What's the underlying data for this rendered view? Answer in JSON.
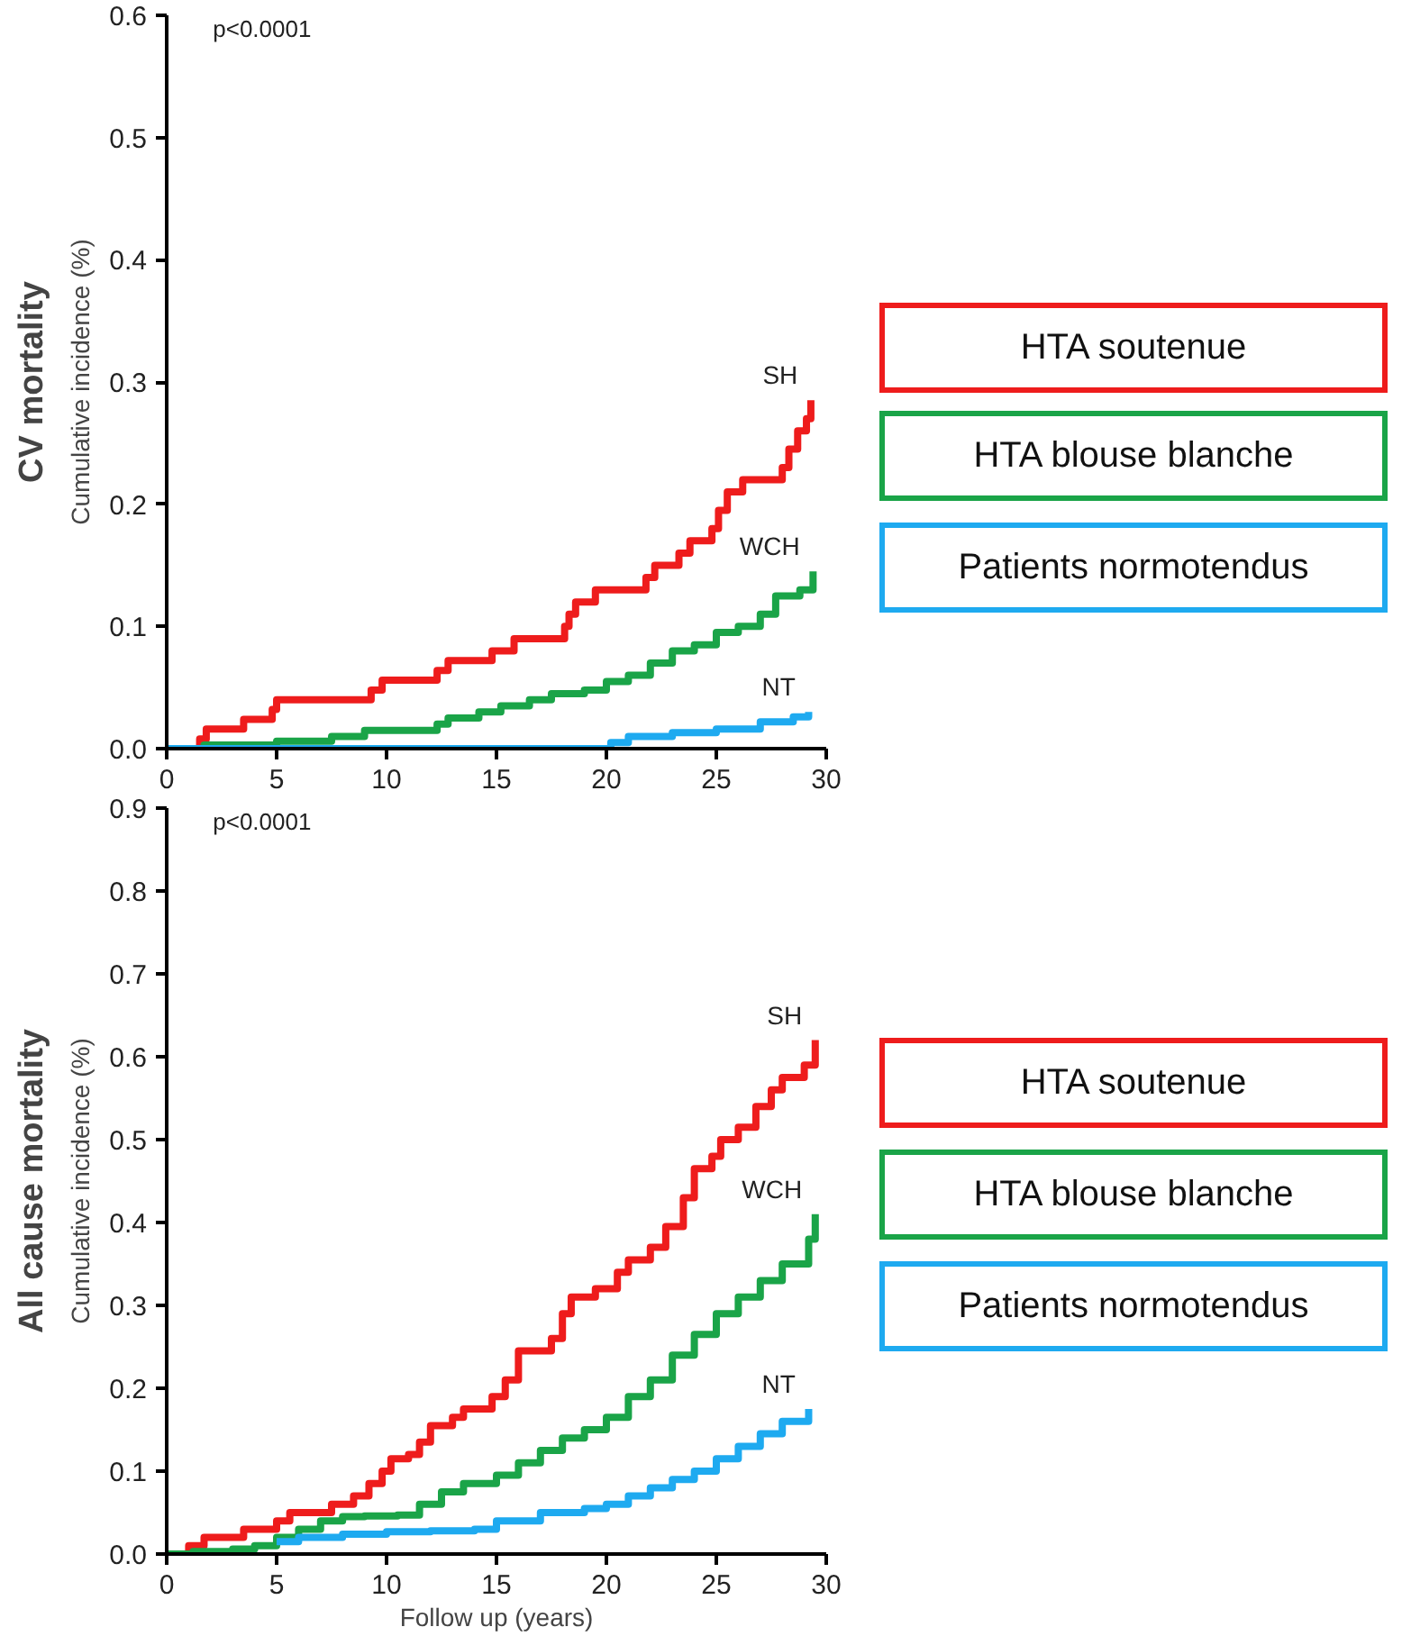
{
  "chart_data": [
    {
      "type": "step",
      "title": "CV mortality",
      "ylabel": "Cumulative incidence (%)",
      "xlim": [
        0,
        30
      ],
      "xticks": [
        0,
        5,
        10,
        15,
        20,
        25,
        30
      ],
      "ylim": [
        0,
        0.6
      ],
      "yticks": [
        {
          "value": 0,
          "label": "0.0"
        },
        0.1,
        0.2,
        0.3,
        0.4,
        0.5,
        0.6
      ],
      "grid": false,
      "annotations": [
        "p<0.0001",
        "HTA soutenue",
        "HTA blouse blanche",
        "Patients normotendus"
      ],
      "series": [
        {
          "name": "SH",
          "color": "#ee1c1c",
          "x": [
            0,
            1.5,
            1.8,
            3.5,
            4.8,
            5.0,
            9.3,
            9.8,
            12.3,
            12.8,
            14.8,
            15.8,
            18.1,
            18.3,
            18.6,
            19.5,
            21.8,
            22.2,
            23.3,
            23.8,
            24.8,
            25.1,
            25.5,
            26.2,
            28.0,
            28.3,
            28.7,
            29.1,
            29.3
          ],
          "values": [
            0,
            0.008,
            0.016,
            0.024,
            0.032,
            0.04,
            0.048,
            0.056,
            0.064,
            0.072,
            0.08,
            0.09,
            0.1,
            0.11,
            0.12,
            0.13,
            0.14,
            0.15,
            0.16,
            0.17,
            0.18,
            0.195,
            0.21,
            0.22,
            0.23,
            0.245,
            0.26,
            0.27,
            0.285
          ]
        },
        {
          "name": "WCH",
          "color": "#1aa448",
          "x": [
            0,
            1.7,
            5,
            7.5,
            9,
            12.3,
            12.8,
            14.2,
            15.2,
            16.5,
            17.5,
            19,
            20,
            21,
            22,
            23,
            24,
            25,
            26,
            27,
            27.7,
            28.8,
            29.4
          ],
          "values": [
            0,
            0.003,
            0.006,
            0.01,
            0.015,
            0.02,
            0.025,
            0.03,
            0.035,
            0.04,
            0.045,
            0.048,
            0.055,
            0.06,
            0.07,
            0.08,
            0.085,
            0.095,
            0.1,
            0.11,
            0.125,
            0.13,
            0.145
          ]
        },
        {
          "name": "NT",
          "color": "#1eaaf0",
          "x": [
            0,
            19.5,
            20.2,
            21,
            23,
            25,
            27,
            28.5,
            29.2
          ],
          "values": [
            0,
            0,
            0.005,
            0.01,
            0.013,
            0.016,
            0.022,
            0.026,
            0.03
          ]
        }
      ]
    },
    {
      "type": "step",
      "title": "All cause mortality",
      "ylabel": "Cumulative incidence (%)",
      "xlabel": "Follow up (years)",
      "xlim": [
        0,
        30
      ],
      "xticks": [
        0,
        5,
        10,
        15,
        20,
        25,
        30
      ],
      "ylim": [
        0,
        0.9
      ],
      "yticks": [
        {
          "value": 0,
          "label": "0.0"
        },
        0.1,
        0.2,
        0.3,
        0.4,
        0.5,
        0.6,
        0.7,
        0.8,
        0.9
      ],
      "grid": false,
      "annotations": [
        "p<0.0001",
        "HTA soutenue",
        "HTA blouse blanche",
        "Patients normotendus"
      ],
      "series": [
        {
          "name": "SH",
          "color": "#ee1c1c",
          "x": [
            0,
            1,
            1.7,
            3.5,
            5,
            5.6,
            7.5,
            8.5,
            9.2,
            9.8,
            10.2,
            11,
            11.5,
            12,
            13,
            13.5,
            14.8,
            15.4,
            16,
            17.5,
            18,
            18.4,
            19.5,
            20.5,
            21,
            22,
            22.7,
            23.5,
            24,
            24.8,
            25.2,
            26,
            26.8,
            27.5,
            28,
            29,
            29.5
          ],
          "values": [
            0,
            0.01,
            0.02,
            0.03,
            0.04,
            0.05,
            0.06,
            0.07,
            0.085,
            0.1,
            0.115,
            0.12,
            0.135,
            0.155,
            0.165,
            0.175,
            0.19,
            0.21,
            0.245,
            0.26,
            0.29,
            0.31,
            0.32,
            0.34,
            0.355,
            0.37,
            0.395,
            0.43,
            0.465,
            0.48,
            0.5,
            0.515,
            0.54,
            0.56,
            0.575,
            0.59,
            0.62
          ]
        },
        {
          "name": "WCH",
          "color": "#1aa448",
          "x": [
            0,
            1.2,
            3,
            4,
            5,
            6,
            7,
            8,
            9,
            10.5,
            11.5,
            12.5,
            13.5,
            15,
            16,
            17,
            18,
            19,
            20,
            21,
            22,
            23,
            24,
            25,
            26,
            27,
            28,
            29.2,
            29.5
          ],
          "values": [
            0,
            0.003,
            0.006,
            0.01,
            0.02,
            0.03,
            0.04,
            0.045,
            0.046,
            0.047,
            0.06,
            0.075,
            0.085,
            0.095,
            0.11,
            0.125,
            0.14,
            0.15,
            0.165,
            0.19,
            0.21,
            0.24,
            0.265,
            0.29,
            0.31,
            0.33,
            0.35,
            0.38,
            0.41
          ]
        },
        {
          "name": "NT",
          "color": "#1eaaf0",
          "x": [
            5,
            6,
            8,
            10,
            12,
            14,
            15,
            17,
            19,
            20,
            21,
            22,
            23,
            24,
            25,
            26,
            27,
            28,
            29.2
          ],
          "values": [
            0.015,
            0.02,
            0.024,
            0.027,
            0.028,
            0.03,
            0.04,
            0.05,
            0.055,
            0.06,
            0.07,
            0.08,
            0.09,
            0.1,
            0.115,
            0.13,
            0.145,
            0.16,
            0.175
          ]
        }
      ]
    }
  ]
}
